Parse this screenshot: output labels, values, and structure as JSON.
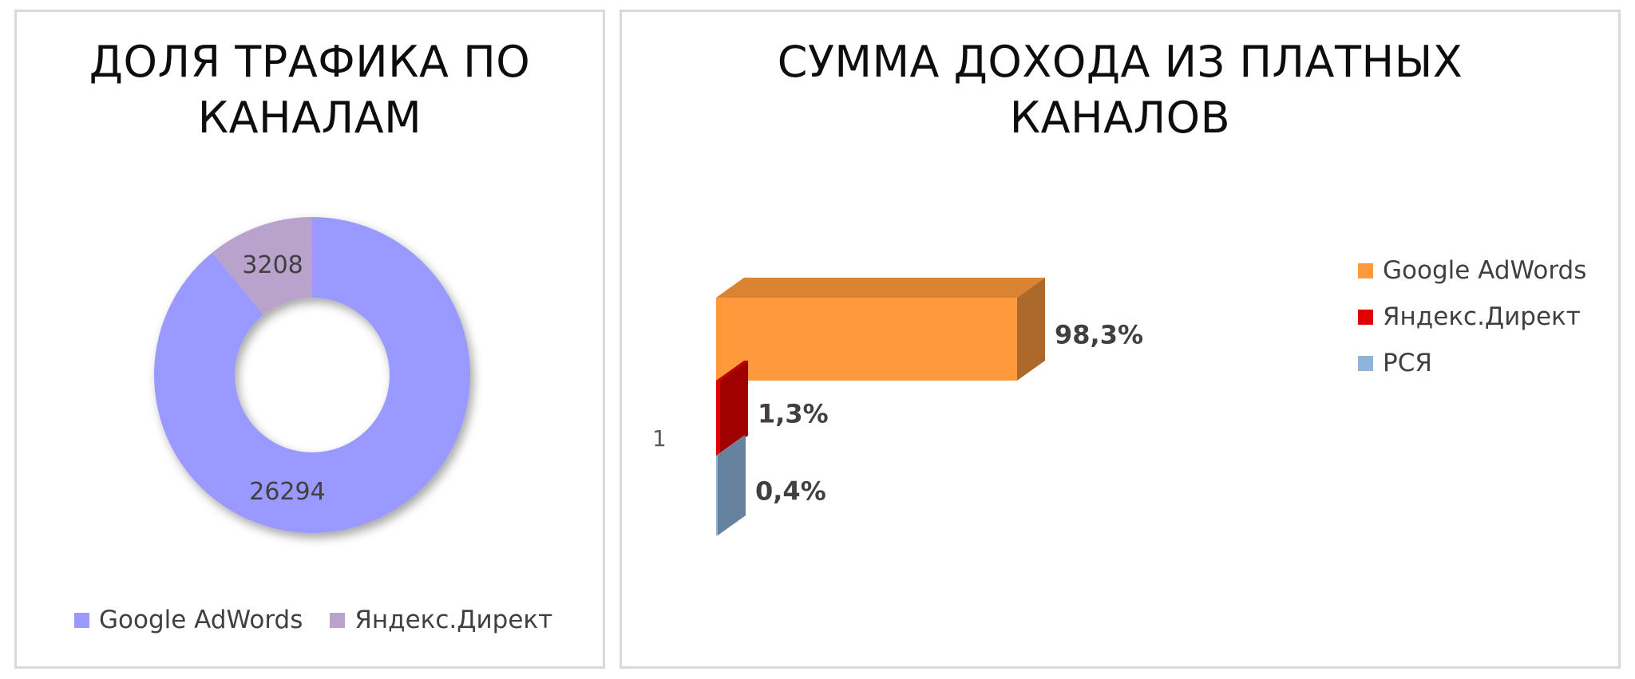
{
  "chart_data": [
    {
      "type": "pie",
      "variant": "doughnut",
      "title_lines": [
        "ДОЛЯ ТРАФИКА ПО",
        "КАНАЛАМ"
      ],
      "categories": [
        "Google AdWords",
        "Яндекс.Директ"
      ],
      "values": [
        26294,
        3208
      ],
      "value_labels": [
        "26294",
        "3208"
      ],
      "colors": [
        "#9999ff",
        "#b9a3cc"
      ],
      "legend_position": "bottom"
    },
    {
      "type": "bar",
      "orientation": "horizontal",
      "style": "3d",
      "title_lines": [
        "СУММА ДОХОДА ИЗ ПЛАТНЫХ",
        "КАНАЛОВ"
      ],
      "categories": [
        "1"
      ],
      "series": [
        {
          "name": "Google AdWords",
          "values": [
            98.3
          ],
          "label": "98,3%",
          "color": "#ff9a3c"
        },
        {
          "name": "Яндекс.Директ",
          "values": [
            1.3
          ],
          "label": "1,3%",
          "color": "#e00000"
        },
        {
          "name": "РСЯ",
          "values": [
            0.4
          ],
          "label": "0,4%",
          "color": "#8eb4d9"
        }
      ],
      "xlim": [
        0,
        100
      ],
      "grid": false,
      "legend_position": "right"
    }
  ]
}
